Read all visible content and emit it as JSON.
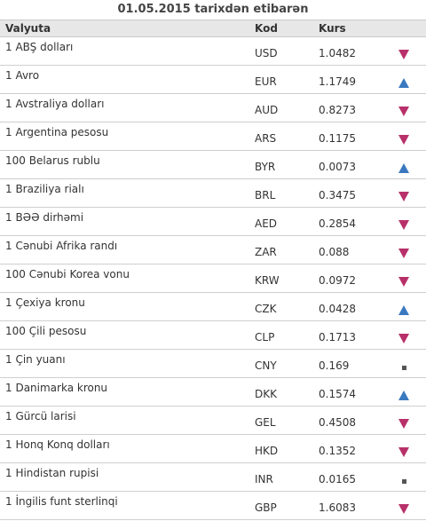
{
  "title": "01.05.2015 tarixdən etibarən",
  "headers": {
    "name": "Valyuta",
    "code": "Kod",
    "rate": "Kurs"
  },
  "colors": {
    "down": "#b8306a",
    "up": "#3a79c0",
    "same": "#555555"
  },
  "rows": [
    {
      "name": "1 ABŞ dolları",
      "code": "USD",
      "rate": "1.0482",
      "trend": "down"
    },
    {
      "name": "1 Avro",
      "code": "EUR",
      "rate": "1.1749",
      "trend": "up"
    },
    {
      "name": "1 Avstraliya dolları",
      "code": "AUD",
      "rate": "0.8273",
      "trend": "down"
    },
    {
      "name": "1 Argentina pesosu",
      "code": "ARS",
      "rate": "0.1175",
      "trend": "down"
    },
    {
      "name": "100 Belarus rublu",
      "code": "BYR",
      "rate": "0.0073",
      "trend": "up"
    },
    {
      "name": "1 Braziliya rialı",
      "code": "BRL",
      "rate": "0.3475",
      "trend": "down"
    },
    {
      "name": "1 BƏƏ dirhəmi",
      "code": "AED",
      "rate": "0.2854",
      "trend": "down"
    },
    {
      "name": "1 Cənubi Afrika randı",
      "code": "ZAR",
      "rate": "0.088",
      "trend": "down"
    },
    {
      "name": "100 Cənubi Korea vonu",
      "code": "KRW",
      "rate": "0.0972",
      "trend": "down"
    },
    {
      "name": "1 Çexiya kronu",
      "code": "CZK",
      "rate": "0.0428",
      "trend": "up"
    },
    {
      "name": "100 Çili pesosu",
      "code": "CLP",
      "rate": "0.1713",
      "trend": "down"
    },
    {
      "name": "1 Çin yuanı",
      "code": "CNY",
      "rate": "0.169",
      "trend": "same"
    },
    {
      "name": "1 Danimarka kronu",
      "code": "DKK",
      "rate": "0.1574",
      "trend": "up"
    },
    {
      "name": "1 Gürcü larisi",
      "code": "GEL",
      "rate": "0.4508",
      "trend": "down"
    },
    {
      "name": "1 Honq Konq dolları",
      "code": "HKD",
      "rate": "0.1352",
      "trend": "down"
    },
    {
      "name": "1 Hindistan rupisi",
      "code": "INR",
      "rate": "0.0165",
      "trend": "same"
    },
    {
      "name": "1 İngilis funt sterlinqi",
      "code": "GBP",
      "rate": "1.6083",
      "trend": "down"
    }
  ]
}
